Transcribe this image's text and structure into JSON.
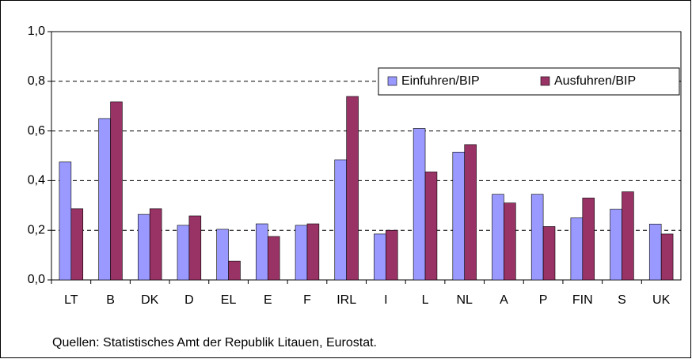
{
  "chart_data": {
    "type": "bar",
    "categories": [
      "LT",
      "B",
      "DK",
      "D",
      "EL",
      "E",
      "F",
      "IRL",
      "I",
      "L",
      "NL",
      "A",
      "P",
      "FIN",
      "S",
      "UK"
    ],
    "series": [
      {
        "name": "Einfuhren/BIP",
        "color": "#9999ff",
        "values": [
          0.475,
          0.65,
          0.264,
          0.22,
          0.204,
          0.226,
          0.22,
          0.484,
          0.185,
          0.61,
          0.515,
          0.345,
          0.345,
          0.25,
          0.285,
          0.225
        ]
      },
      {
        "name": "Ausfuhren/BIP",
        "color": "#993366",
        "values": [
          0.287,
          0.717,
          0.287,
          0.258,
          0.076,
          0.175,
          0.226,
          0.739,
          0.2,
          0.435,
          0.545,
          0.31,
          0.215,
          0.33,
          0.355,
          0.185
        ]
      }
    ],
    "ylim": [
      0,
      1
    ],
    "yticks": [
      {
        "value": 0,
        "label": "0,0"
      },
      {
        "value": 0.2,
        "label": "0,2"
      },
      {
        "value": 0.4,
        "label": "0,4"
      },
      {
        "value": 0.6,
        "label": "0,6"
      },
      {
        "value": 0.8,
        "label": "0,8"
      },
      {
        "value": 1,
        "label": "1,0"
      }
    ],
    "grid": true,
    "legend": "top-right",
    "source": "Quellen: Statistisches Amt der Republik Litauen, Eurostat."
  }
}
